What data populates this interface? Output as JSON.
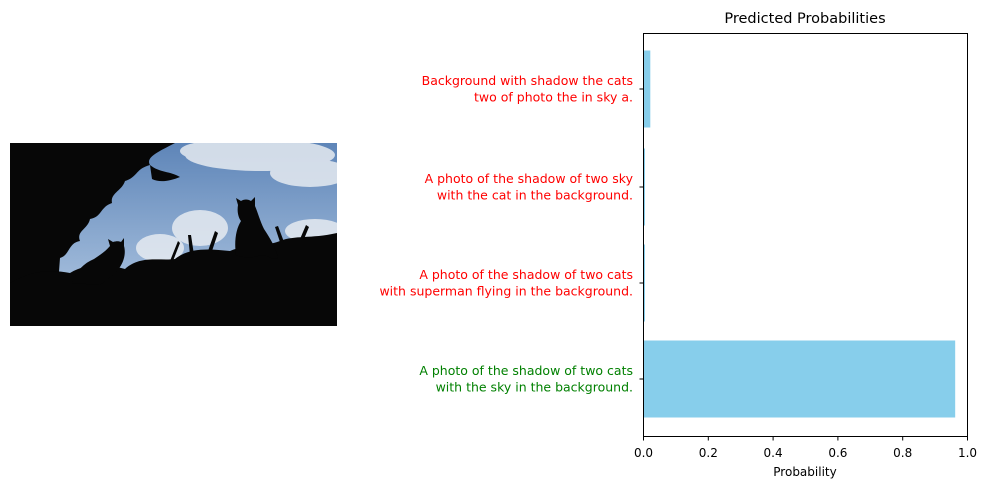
{
  "photo": {
    "subject": "silhouettes of two cats on a hedge against a cloudy blue sky",
    "colors": {
      "sky_top": "#5e85b8",
      "sky_bottom": "#b7cde6",
      "cloud": "#e6ebf1",
      "silhouette": "#070707"
    }
  },
  "chart_data": {
    "type": "bar",
    "orientation": "horizontal",
    "title": "Predicted Probabilities",
    "xlabel": "Probability",
    "ylabel": "",
    "xlim": [
      0,
      1.0
    ],
    "xticks": [
      "0.0",
      "0.2",
      "0.4",
      "0.6",
      "0.8",
      "1.0"
    ],
    "grid": false,
    "categories": [
      {
        "lines": [
          "A photo of the shadow of two cats",
          "with the sky in the background."
        ],
        "color": "#008000"
      },
      {
        "lines": [
          "A photo of the shadow of two cats",
          "with superman flying in the background."
        ],
        "color": "#ff0000"
      },
      {
        "lines": [
          "A photo of the shadow of two sky",
          "with the cat in the background."
        ],
        "color": "#ff0000"
      },
      {
        "lines": [
          "Background with shadow the cats",
          "two of photo the in sky a."
        ],
        "color": "#ff0000"
      }
    ],
    "values": [
      0.962,
      0.003,
      0.004,
      0.021
    ],
    "bar_color": "#87ceeb"
  }
}
